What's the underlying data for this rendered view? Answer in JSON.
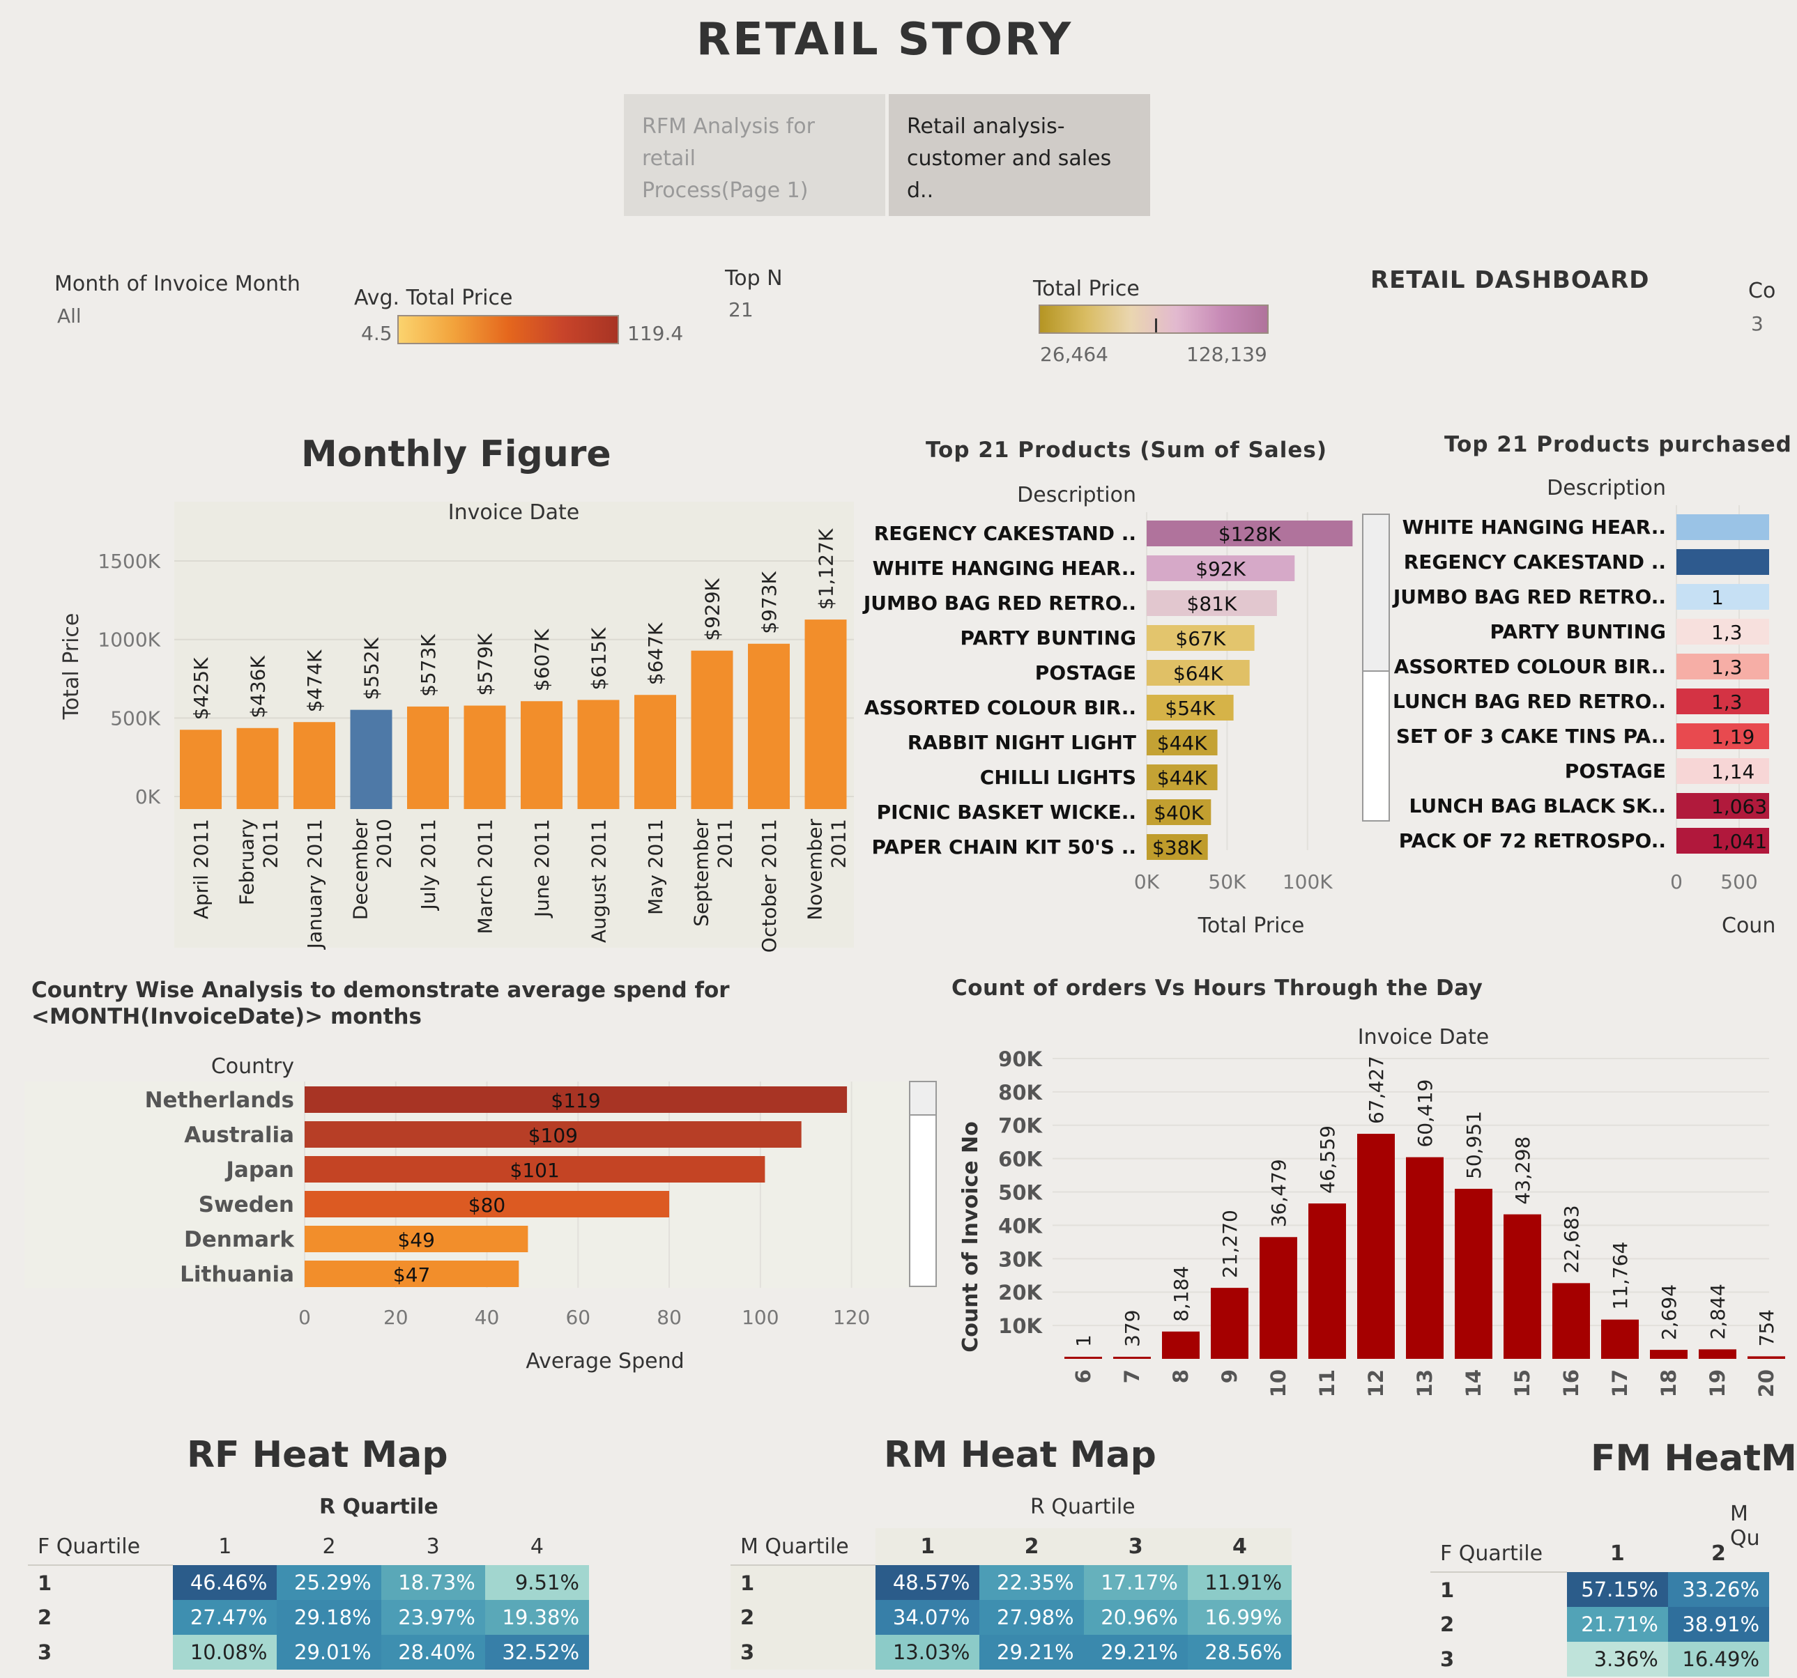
{
  "page": {
    "title": "RETAIL STORY",
    "tabs": [
      {
        "label_line1": "RFM Analysis for retail",
        "label_line2": "Process(Page 1)"
      },
      {
        "label_line1": "Retail analysis-",
        "label_line2": "customer and sales  d.."
      }
    ]
  },
  "filters": {
    "month_label": "Month of Invoice Month",
    "month_value": "All",
    "avg_total_price_label": "Avg. Total Price",
    "avg_min": "4.5",
    "avg_max": "119.4",
    "top_n_label": "Top N",
    "top_n_value": "21",
    "total_price_label": "Total Price",
    "total_min": "26,464",
    "total_max": "128,139",
    "dashboard_title": "RETAIL DASHBOARD",
    "cut_label": "Co",
    "cut_value": "3"
  },
  "colors": {
    "orange": "#f28e2b",
    "blue": "#4e79a7",
    "dark_red": "#a50000",
    "rust": "#a83424"
  },
  "chart_data": [
    {
      "id": "monthly",
      "type": "bar",
      "title": "Monthly Figure",
      "top_label": "Invoice Date",
      "ylabel": "Total Price",
      "ylim": [
        0,
        1700000
      ],
      "yticks": [
        {
          "v": 0,
          "t": "0K"
        },
        {
          "v": 500000,
          "t": "500K"
        },
        {
          "v": 1000000,
          "t": "1000K"
        },
        {
          "v": 1500000,
          "t": "1500K"
        }
      ],
      "categories": [
        [
          "April 2011"
        ],
        [
          "February",
          "2011"
        ],
        [
          "January 2011"
        ],
        [
          "December",
          "2010"
        ],
        [
          "July 2011"
        ],
        [
          "March 2011"
        ],
        [
          "June 2011"
        ],
        [
          "August 2011"
        ],
        [
          "May 2011"
        ],
        [
          "September",
          "2011"
        ],
        [
          "October 2011"
        ],
        [
          "November",
          "2011"
        ]
      ],
      "values": [
        425000,
        436000,
        474000,
        552000,
        573000,
        579000,
        607000,
        615000,
        647000,
        929000,
        973000,
        1127000
      ],
      "labels": [
        "$425K",
        "$436K",
        "$474K",
        "$552K",
        "$573K",
        "$579K",
        "$607K",
        "$615K",
        "$647K",
        "$929K",
        "$973K",
        "$1,127K"
      ],
      "highlight_index": 3
    },
    {
      "id": "top_sales",
      "type": "bar",
      "orientation": "horizontal",
      "title": "Top 21 Products (Sum of Sales)",
      "header": "Description",
      "xlabel": "Total Price",
      "xlim": [
        0,
        130000
      ],
      "xticks": [
        {
          "v": 0,
          "t": "0K"
        },
        {
          "v": 50000,
          "t": "50K"
        },
        {
          "v": 100000,
          "t": "100K"
        }
      ],
      "categories": [
        "REGENCY CAKESTAND ..",
        "WHITE HANGING HEAR..",
        "JUMBO BAG RED RETRO..",
        "PARTY BUNTING",
        "POSTAGE",
        "ASSORTED COLOUR BIR..",
        "RABBIT NIGHT LIGHT",
        "CHILLI LIGHTS",
        "PICNIC BASKET WICKE..",
        "PAPER CHAIN KIT 50'S .."
      ],
      "values": [
        128000,
        92000,
        81000,
        67000,
        64000,
        54000,
        44000,
        44000,
        40000,
        38000
      ],
      "labels": [
        "$128K",
        "$92K",
        "$81K",
        "$67K",
        "$64K",
        "$54K",
        "$44K",
        "$44K",
        "$40K",
        "$38K"
      ],
      "bar_colors": [
        "#b0739c",
        "#d6a9c8",
        "#e2c7cf",
        "#e3c56d",
        "#e0c066",
        "#d6b348",
        "#c4a234",
        "#c4a234",
        "#c29f30",
        "#bf9c2c"
      ]
    },
    {
      "id": "top_qty",
      "type": "bar",
      "orientation": "horizontal",
      "title": "Top 21 Products purchased",
      "header": "Description",
      "xlabel": "Coun",
      "xticks": [
        {
          "v": 0,
          "t": "0"
        },
        {
          "v": 500,
          "t": "500"
        }
      ],
      "categories": [
        "WHITE HANGING HEAR..",
        "REGENCY CAKESTAND ..",
        "JUMBO BAG RED RETRO..",
        "PARTY BUNTING",
        "ASSORTED COLOUR BIR..",
        "LUNCH BAG RED RETRO..",
        "SET OF 3 CAKE TINS PA..",
        "POSTAGE",
        "LUNCH BAG  BLACK SK..",
        "PACK OF 72 RETROSPO.."
      ],
      "labels": [
        "",
        "",
        "1",
        "1,3",
        "1,3",
        "1,3",
        "1,19",
        "1,14",
        "1,063",
        "1,041"
      ],
      "bar_colors": [
        "#9ac3e6",
        "#2e5a8e",
        "#c6e0f4",
        "#f7e0dd",
        "#f6aea6",
        "#d43344",
        "#e84a4f",
        "#f7d6d6",
        "#b11a3c",
        "#b1183c"
      ]
    },
    {
      "id": "country",
      "type": "bar",
      "orientation": "horizontal",
      "title_line1": "Country Wise Analysis to demonstrate average spend for",
      "title_line2": "<MONTH(InvoiceDate)>  months",
      "header": "Country",
      "xlabel": "Average Spend",
      "xlim": [
        0,
        130
      ],
      "xticks": [
        0,
        20,
        40,
        60,
        80,
        100,
        120
      ],
      "categories": [
        "Netherlands",
        "Australia",
        "Japan",
        "Sweden",
        "Denmark",
        "Lithuania"
      ],
      "values": [
        119,
        109,
        101,
        80,
        49,
        47
      ],
      "labels": [
        "$119",
        "$109",
        "$101",
        "$80",
        "$49",
        "$47"
      ],
      "bar_colors": [
        "#a83424",
        "#b73e26",
        "#c44424",
        "#dc5a22",
        "#f28e2b",
        "#f28e2b"
      ]
    },
    {
      "id": "hours",
      "type": "bar",
      "title": "Count of orders Vs Hours Through the Day",
      "top_label": "Invoice Date",
      "ylabel": "Count of Invoice No",
      "ylim": [
        0,
        95000
      ],
      "yticks": [
        {
          "v": 10000,
          "t": "10K"
        },
        {
          "v": 20000,
          "t": "20K"
        },
        {
          "v": 30000,
          "t": "30K"
        },
        {
          "v": 40000,
          "t": "40K"
        },
        {
          "v": 50000,
          "t": "50K"
        },
        {
          "v": 60000,
          "t": "60K"
        },
        {
          "v": 70000,
          "t": "70K"
        },
        {
          "v": 80000,
          "t": "80K"
        },
        {
          "v": 90000,
          "t": "90K"
        }
      ],
      "categories": [
        "6",
        "7",
        "8",
        "9",
        "10",
        "11",
        "12",
        "13",
        "14",
        "15",
        "16",
        "17",
        "18",
        "19",
        "20"
      ],
      "values": [
        1,
        379,
        8184,
        21270,
        36479,
        46559,
        67427,
        60419,
        50951,
        43298,
        22683,
        11764,
        2694,
        2844,
        754
      ],
      "labels": [
        "1",
        "379",
        "8,184",
        "21,270",
        "36,479",
        "46,559",
        "67,427",
        "60,419",
        "50,951",
        "43,298",
        "22,683",
        "11,764",
        "2,694",
        "2,844",
        "754"
      ]
    },
    {
      "id": "rf_heat",
      "type": "heatmap",
      "title": "RF Heat Map",
      "col_header": "R Quartile",
      "row_header": "F Quartile",
      "columns": [
        "1",
        "2",
        "3",
        "4"
      ],
      "rows": [
        {
          "label": "1",
          "values": [
            "46.46%",
            "25.29%",
            "18.73%",
            "9.51%"
          ],
          "colors": [
            "#2b5c8a",
            "#3e8fb0",
            "#5aa8b8",
            "#a2d6cf"
          ]
        },
        {
          "label": "2",
          "values": [
            "27.47%",
            "29.18%",
            "23.97%",
            "19.38%"
          ],
          "colors": [
            "#3e8fb0",
            "#3a89ad",
            "#4c9db6",
            "#5aa8b8"
          ]
        },
        {
          "label": "3",
          "values": [
            "10.08%",
            "29.01%",
            "28.40%",
            "32.52%"
          ],
          "colors": [
            "#a6d8d0",
            "#3a89ad",
            "#3e8fb0",
            "#377fa8"
          ]
        }
      ]
    },
    {
      "id": "rm_heat",
      "type": "heatmap",
      "title": "RM Heat Map",
      "col_header": "R Quartile",
      "row_header": "M Quartile",
      "columns": [
        "1",
        "2",
        "3",
        "4"
      ],
      "rows": [
        {
          "label": "1",
          "values": [
            "48.57%",
            "22.35%",
            "17.17%",
            "11.91%"
          ],
          "colors": [
            "#2b5c8a",
            "#4c9db6",
            "#66b1bc",
            "#8ccbc8"
          ]
        },
        {
          "label": "2",
          "values": [
            "34.07%",
            "27.98%",
            "20.96%",
            "16.99%"
          ],
          "colors": [
            "#377fa8",
            "#3e8fb0",
            "#52a3b7",
            "#66b1bc"
          ]
        },
        {
          "label": "3",
          "values": [
            "13.03%",
            "29.21%",
            "29.21%",
            "28.56%"
          ],
          "colors": [
            "#8ccbc8",
            "#3a89ad",
            "#3a89ad",
            "#3e8fb0"
          ]
        }
      ]
    },
    {
      "id": "fm_heat",
      "type": "heatmap",
      "title": "FM HeatM",
      "col_header": "M Qu",
      "row_header": "F Quartile",
      "columns": [
        "1",
        "2"
      ],
      "rows": [
        {
          "label": "1",
          "values": [
            "57.15%",
            "33.26%"
          ],
          "colors": [
            "#2b5c8a",
            "#377fa8"
          ]
        },
        {
          "label": "2",
          "values": [
            "21.71%",
            "38.91%"
          ],
          "colors": [
            "#52a3b7",
            "#2f6f9c"
          ]
        },
        {
          "label": "3",
          "values": [
            "3.36%",
            "16.49%"
          ],
          "colors": [
            "#bfe3da",
            "#a2d6cf"
          ]
        }
      ]
    }
  ]
}
